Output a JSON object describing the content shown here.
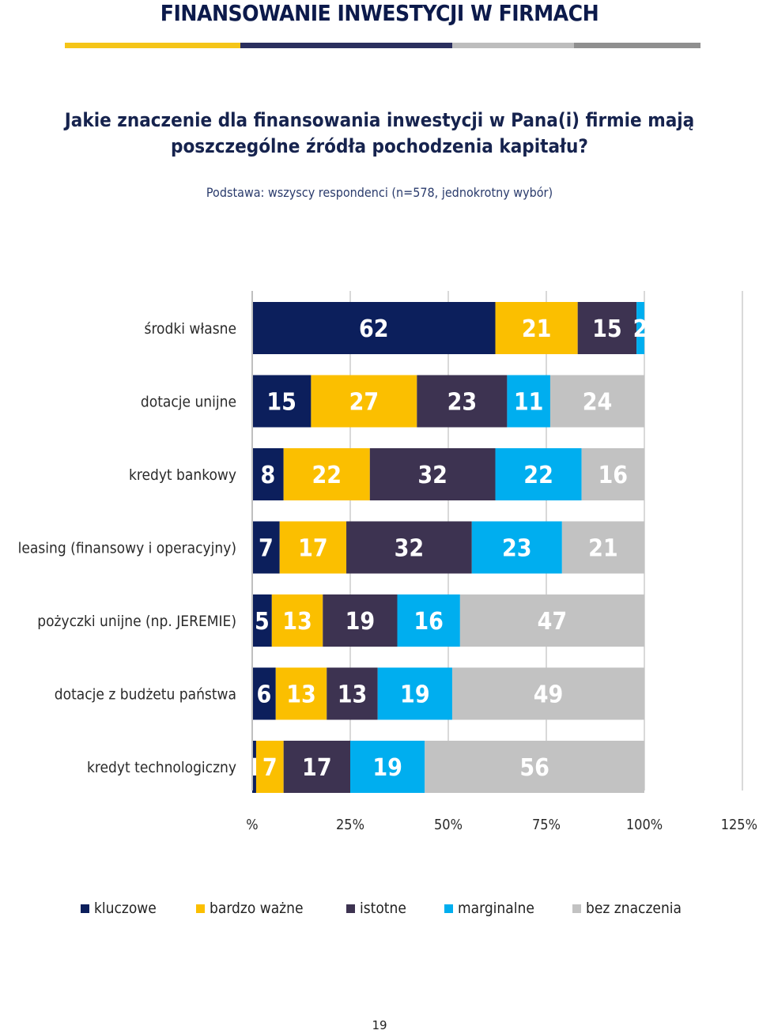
{
  "header": {
    "title": "FINANSOWANIE INWESTYCJI W FIRMACH",
    "stripe_colors": [
      "#f5c518",
      "#2a2f5e",
      "#bdbdbd",
      "#8f8f8f"
    ]
  },
  "question": {
    "line1": "Jakie znaczenie dla finansowania inwestycji w Pana(i) firmie mają",
    "line2": "poszczególne źródła pochodzenia kapitału?",
    "base": "Podstawa: wszyscy respondenci (n=578, jednokrotny wybór)"
  },
  "chart_data": {
    "type": "bar",
    "orientation": "horizontal",
    "stacked": true,
    "categories": [
      "środki własne",
      "dotacje unijne",
      "kredyt bankowy",
      "leasing (finansowy i operacyjny)",
      "pożyczki unijne (np. JEREMIE)",
      "dotacje z budżetu państwa",
      "kredyt technologiczny"
    ],
    "series": [
      {
        "name": "kluczowe",
        "color": "#0c1f5c",
        "values": [
          62,
          15,
          8,
          7,
          5,
          6,
          1
        ]
      },
      {
        "name": "bardzo ważne",
        "color": "#fbbf00",
        "values": [
          21,
          27,
          22,
          17,
          13,
          13,
          7
        ]
      },
      {
        "name": "istotne",
        "color": "#3d3351",
        "values": [
          15,
          23,
          32,
          32,
          19,
          13,
          17
        ]
      },
      {
        "name": "marginalne",
        "color": "#00aeef",
        "values": [
          2,
          11,
          22,
          23,
          16,
          19,
          19
        ]
      },
      {
        "name": "bez znaczenia",
        "color": "#c2c2c2",
        "values": [
          0,
          24,
          16,
          21,
          47,
          49,
          56
        ]
      }
    ],
    "xlim": [
      0,
      125
    ],
    "xticks": [
      0,
      25,
      50,
      75,
      100,
      125
    ],
    "xtick_labels": [
      "%",
      "25%",
      "50%",
      "75%",
      "100%",
      "125%"
    ],
    "title": "",
    "xlabel": "",
    "ylabel": "",
    "legend_position": "bottom"
  },
  "page_number": "19"
}
